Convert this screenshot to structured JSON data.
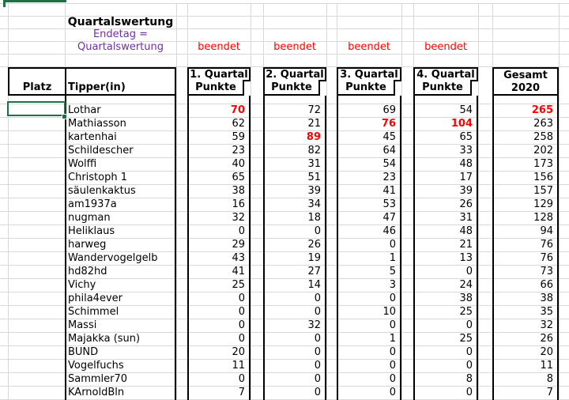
{
  "title": "Quartalswertung",
  "subtitle": {
    "line1": "Endetag =",
    "line2": "Quartalswertung"
  },
  "status_label": "beendet",
  "table": {
    "platz_header": "Platz",
    "tipper_header": "Tipper(in)",
    "quarter_headers": [
      {
        "line1": "1. Quartal",
        "line2": "Punkte"
      },
      {
        "line1": "2. Quartal",
        "line2": "Punkte"
      },
      {
        "line1": "3. Quartal",
        "line2": "Punkte"
      },
      {
        "line1": "4. Quartal",
        "line2": "Punkte"
      }
    ],
    "total_header": {
      "line1": "Gesamt",
      "line2": "2020"
    },
    "rows": [
      {
        "name": "Lothar",
        "q1": 70,
        "q2": 72,
        "q3": 69,
        "q4": 54,
        "total": 265,
        "red": [
          "q1",
          "total"
        ]
      },
      {
        "name": "Mathiasson",
        "q1": 62,
        "q2": 21,
        "q3": 76,
        "q4": 104,
        "total": 263,
        "red": [
          "q3",
          "q4"
        ]
      },
      {
        "name": "kartenhai",
        "q1": 59,
        "q2": 89,
        "q3": 45,
        "q4": 65,
        "total": 258,
        "red": [
          "q2"
        ]
      },
      {
        "name": "Schildescher",
        "q1": 23,
        "q2": 82,
        "q3": 64,
        "q4": 33,
        "total": 202,
        "red": []
      },
      {
        "name": "Wolffi",
        "q1": 40,
        "q2": 31,
        "q3": 54,
        "q4": 48,
        "total": 173,
        "red": []
      },
      {
        "name": "Christoph 1",
        "q1": 65,
        "q2": 51,
        "q3": 23,
        "q4": 17,
        "total": 156,
        "red": []
      },
      {
        "name": "säulenkaktus",
        "q1": 38,
        "q2": 39,
        "q3": 41,
        "q4": 39,
        "total": 157,
        "red": []
      },
      {
        "name": "am1937a",
        "q1": 16,
        "q2": 34,
        "q3": 53,
        "q4": 26,
        "total": 129,
        "red": []
      },
      {
        "name": "nugman",
        "q1": 32,
        "q2": 18,
        "q3": 47,
        "q4": 31,
        "total": 128,
        "red": []
      },
      {
        "name": "Heliklaus",
        "q1": 0,
        "q2": 0,
        "q3": 46,
        "q4": 48,
        "total": 94,
        "red": []
      },
      {
        "name": "harweg",
        "q1": 29,
        "q2": 26,
        "q3": 0,
        "q4": 21,
        "total": 76,
        "red": []
      },
      {
        "name": "Wandervogelgelb",
        "q1": 43,
        "q2": 19,
        "q3": 1,
        "q4": 13,
        "total": 76,
        "red": []
      },
      {
        "name": "hd82hd",
        "q1": 41,
        "q2": 27,
        "q3": 5,
        "q4": 0,
        "total": 73,
        "red": []
      },
      {
        "name": "Vichy",
        "q1": 25,
        "q2": 14,
        "q3": 3,
        "q4": 24,
        "total": 66,
        "red": []
      },
      {
        "name": "phila4ever",
        "q1": 0,
        "q2": 0,
        "q3": 0,
        "q4": 38,
        "total": 38,
        "red": []
      },
      {
        "name": "Schimmel",
        "q1": 0,
        "q2": 0,
        "q3": 10,
        "q4": 25,
        "total": 35,
        "red": []
      },
      {
        "name": "Massi",
        "q1": 0,
        "q2": 32,
        "q3": 0,
        "q4": 0,
        "total": 32,
        "red": []
      },
      {
        "name": "Majakka (sun)",
        "q1": 0,
        "q2": 0,
        "q3": 1,
        "q4": 25,
        "total": 26,
        "red": []
      },
      {
        "name": "BUND",
        "q1": 20,
        "q2": 0,
        "q3": 0,
        "q4": 0,
        "total": 20,
        "red": []
      },
      {
        "name": "Vogelfuchs",
        "q1": 11,
        "q2": 0,
        "q3": 0,
        "q4": 0,
        "total": 11,
        "red": []
      },
      {
        "name": "Sammler70",
        "q1": 0,
        "q2": 0,
        "q3": 0,
        "q4": 8,
        "total": 8,
        "red": []
      },
      {
        "name": "KArnoldBln",
        "q1": 7,
        "q2": 0,
        "q3": 0,
        "q4": 0,
        "total": 7,
        "red": []
      }
    ]
  },
  "colors": {
    "highlight_red": "#FF0000",
    "status_red": "#FF0000",
    "purple": "#7030A0",
    "selection_green": "#1E7145",
    "gridline": "#D8D8D8",
    "border_black": "#000000"
  }
}
